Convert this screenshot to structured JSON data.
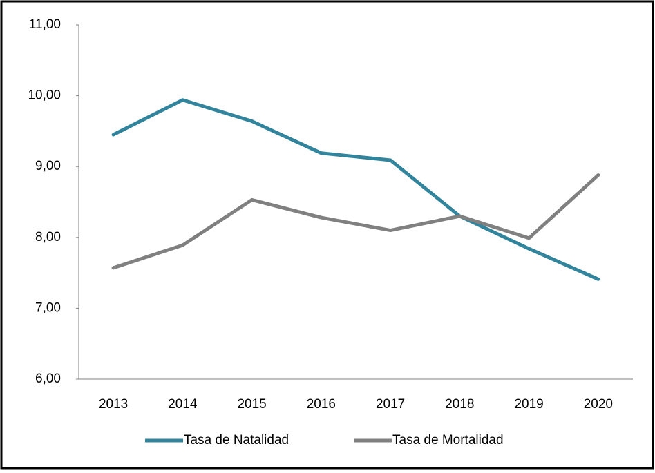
{
  "chart_data": {
    "type": "line",
    "categories": [
      "2013",
      "2014",
      "2015",
      "2016",
      "2017",
      "2018",
      "2019",
      "2020"
    ],
    "series": [
      {
        "name": "Tasa de Natalidad",
        "color": "#31849b",
        "values": [
          9.45,
          9.94,
          9.64,
          9.19,
          9.09,
          8.3,
          7.84,
          7.41
        ]
      },
      {
        "name": "Tasa de Mortalidad",
        "color": "#808080",
        "values": [
          7.57,
          7.89,
          8.53,
          8.28,
          8.1,
          8.3,
          7.99,
          8.88
        ]
      }
    ],
    "ylim": [
      6,
      11
    ],
    "yticks": [
      {
        "value": 6,
        "label": "6,00"
      },
      {
        "value": 7,
        "label": "7,00"
      },
      {
        "value": 8,
        "label": "8,00"
      },
      {
        "value": 9,
        "label": "9,00"
      },
      {
        "value": 10,
        "label": "10,00"
      },
      {
        "value": 11,
        "label": "11,00"
      }
    ],
    "grid": false,
    "legend": "bottom"
  }
}
